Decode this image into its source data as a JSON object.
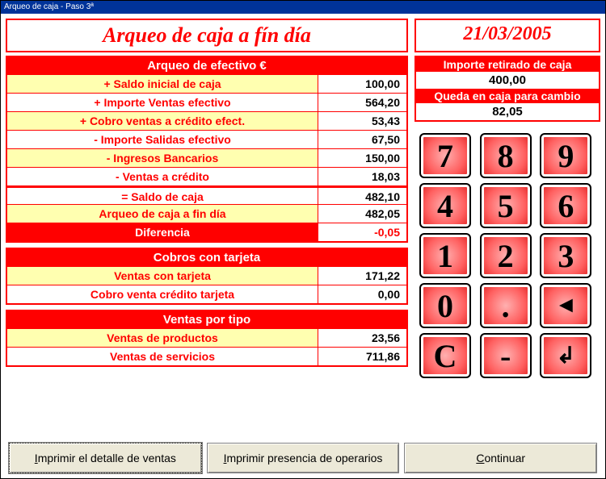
{
  "window_title": "Arqueo de caja - Paso 3ª",
  "header": {
    "main_title": "Arqueo de caja a fín día",
    "date": "21/03/2005"
  },
  "efectivo": {
    "title": "Arqueo de efectivo €",
    "rows": [
      {
        "label": "+ Saldo inicial de caja",
        "value": "100,00",
        "bg": "yellow"
      },
      {
        "label": "+ Importe Ventas efectivo",
        "value": "564,20",
        "bg": "white"
      },
      {
        "label": "+ Cobro ventas a crédito efect.",
        "value": "53,43",
        "bg": "yellow"
      },
      {
        "label": "- Importe Salidas efectivo",
        "value": "67,50",
        "bg": "white"
      },
      {
        "label": "- Ingresos Bancarios",
        "value": "150,00",
        "bg": "yellow"
      },
      {
        "label": "- Ventas a crédito",
        "value": "18,03",
        "bg": "white"
      }
    ],
    "saldo_label": "= Saldo de caja",
    "saldo_value": "482,10",
    "arqueo_label": "Arqueo de caja a fin día",
    "arqueo_value": "482,05",
    "dif_label": "Diferencia",
    "dif_value": "-0,05"
  },
  "tarjeta": {
    "title": "Cobros con tarjeta",
    "rows": [
      {
        "label": "Ventas con tarjeta",
        "value": "171,22",
        "bg": "yellow"
      },
      {
        "label": "Cobro venta crédito tarjeta",
        "value": "0,00",
        "bg": "white"
      }
    ]
  },
  "tipo": {
    "title": "Ventas por tipo",
    "rows": [
      {
        "label": "Ventas de productos",
        "value": "23,56",
        "bg": "yellow"
      },
      {
        "label": "Ventas de servicios",
        "value": "711,86",
        "bg": "white"
      }
    ]
  },
  "side": {
    "retirado_label": "Importe retirado de caja",
    "retirado_value": "400,00",
    "queda_label": "Queda en caja para cambio",
    "queda_value": "82,05"
  },
  "keypad": [
    "7",
    "8",
    "9",
    "4",
    "5",
    "6",
    "1",
    "2",
    "3",
    "0",
    ".",
    "◄",
    "C",
    "-",
    "↲"
  ],
  "buttons": {
    "print_detail": "Imprimir el detalle de ventas",
    "print_presence": "Imprimir presencia de operarios",
    "continue": "Continuar"
  },
  "colors": {
    "accent": "#ff0000",
    "yellow": "#ffffb0",
    "titlebar": "#003399",
    "btn_face": "#ece9d8"
  }
}
